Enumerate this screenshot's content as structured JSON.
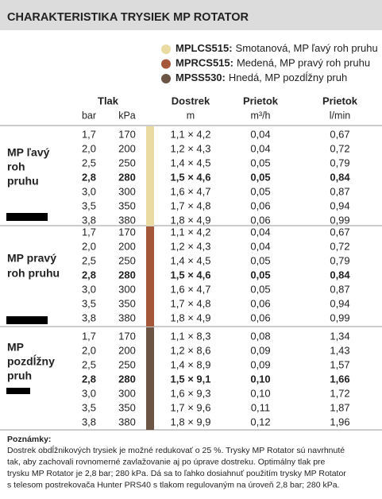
{
  "header": {
    "title": "CHARAKTERISTIKA TRYSIEK MP ROTATOR"
  },
  "legend": [
    {
      "code": "MPLCS515:",
      "description": "Smotanová, MP ľavý roh pruhu",
      "color": "#e9dba2"
    },
    {
      "code": "MPRCS515:",
      "description": "Medená, MP pravý roh pruhu",
      "color": "#a5573a"
    },
    {
      "code": "MPSS530:",
      "description": "Hnedá, MP pozdĺžny pruh",
      "color": "#6c5545"
    }
  ],
  "table": {
    "columns": [
      {
        "title": "Tlak",
        "units": [
          "bar",
          "kPa"
        ]
      },
      {
        "title": "Dostrek",
        "units": [
          "m"
        ]
      },
      {
        "title": "Prietok",
        "units": [
          "m³/h"
        ]
      },
      {
        "title": "Prietok",
        "units": [
          "l/min"
        ]
      }
    ],
    "sections": [
      {
        "label": [
          "MP ľavý",
          "roh",
          "pruhu"
        ],
        "rows": [
          [
            "1,7",
            "170",
            "1,1 × 4,2",
            "0,04",
            "0,67"
          ],
          [
            "2,0",
            "200",
            "1,2 × 4,3",
            "0,04",
            "0,72"
          ],
          [
            "2,5",
            "250",
            "1,4 × 4,5",
            "0,05",
            "0,79"
          ],
          [
            "2,8",
            "280",
            "1,5 × 4,6",
            "0,05",
            "0,84"
          ],
          [
            "3,0",
            "300",
            "1,6 × 4,7",
            "0,05",
            "0,87"
          ],
          [
            "3,5",
            "350",
            "1,7 × 4,8",
            "0,06",
            "0,94"
          ],
          [
            "3,8",
            "380",
            "1,8 × 4,9",
            "0,06",
            "0,99"
          ]
        ]
      },
      {
        "label": [
          "MP pravý",
          "roh pruhu"
        ],
        "rows": [
          [
            "1,7",
            "170",
            "1,1 × 4,2",
            "0,04",
            "0,67"
          ],
          [
            "2,0",
            "200",
            "1,2 × 4,3",
            "0,04",
            "0,72"
          ],
          [
            "2,5",
            "250",
            "1,4 × 4,5",
            "0,05",
            "0,79"
          ],
          [
            "2,8",
            "280",
            "1,5 × 4,6",
            "0,05",
            "0,84"
          ],
          [
            "3,0",
            "300",
            "1,6 × 4,7",
            "0,05",
            "0,87"
          ],
          [
            "3,5",
            "350",
            "1,7 × 4,8",
            "0,06",
            "0,94"
          ],
          [
            "3,8",
            "380",
            "1,8 × 4,9",
            "0,06",
            "0,99"
          ]
        ]
      },
      {
        "label": [
          "MP",
          "pozdĺžny",
          "pruh"
        ],
        "rows": [
          [
            "1,7",
            "170",
            "1,1 × 8,3",
            "0,08",
            "1,34"
          ],
          [
            "2,0",
            "200",
            "1,2 × 8,6",
            "0,09",
            "1,43"
          ],
          [
            "2,5",
            "250",
            "1,4 × 8,9",
            "0,09",
            "1,57"
          ],
          [
            "2,8",
            "280",
            "1,5 × 9,1",
            "0,10",
            "1,66"
          ],
          [
            "3,0",
            "300",
            "1,6 × 9,3",
            "0,10",
            "1,72"
          ],
          [
            "3,5",
            "350",
            "1,7 × 9,6",
            "0,11",
            "1,87"
          ],
          [
            "3,8",
            "380",
            "1,8 × 9,9",
            "0,12",
            "1,96"
          ]
        ]
      }
    ]
  },
  "notes": {
    "title": "Poznámky:",
    "lines": [
      "Dostrek obdĺžnikových trysiek je možné redukovať o 25 %. Trysky MP Rotator sú navrhnuté",
      "tak, aby zachovali rovnomerné zavlažovanie aj po úprave dostreku. Optimálny tlak pre",
      "trysku MP Rotator je 2,8 bar; 280 kPa. Dá sa to ľahko dosiahnuť použitím trysky MP Rotator",
      "s telesom postrekovača Hunter PRS40 s tlakom regulovaným na úroveň 2,8 bar; 280 kPa."
    ]
  }
}
